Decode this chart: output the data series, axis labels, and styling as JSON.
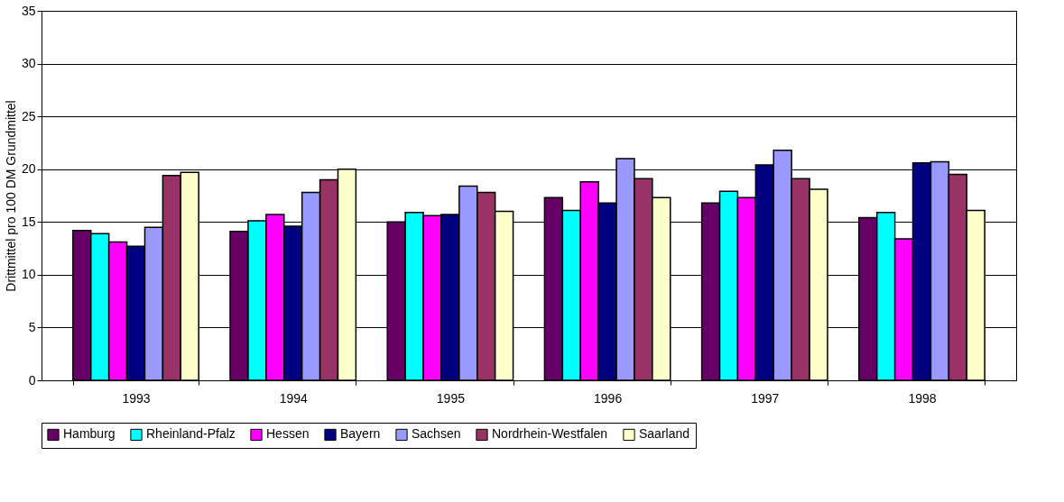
{
  "chart_data": {
    "type": "bar",
    "ylabel": "Drittmittel pro 100 DM Grundmittel",
    "categories": [
      "1993",
      "1994",
      "1995",
      "1996",
      "1997",
      "1998"
    ],
    "series": [
      {
        "name": "Hamburg",
        "color": "#660066",
        "values": [
          14.2,
          14.1,
          15.0,
          17.3,
          16.8,
          15.4
        ]
      },
      {
        "name": "Rheinland-Pfalz",
        "color": "#00ffff",
        "values": [
          13.9,
          15.1,
          15.9,
          16.1,
          17.9,
          15.9
        ]
      },
      {
        "name": "Hessen",
        "color": "#ff00ff",
        "values": [
          13.1,
          15.7,
          15.6,
          18.8,
          17.3,
          13.4
        ]
      },
      {
        "name": "Bayern",
        "color": "#000080",
        "values": [
          12.7,
          14.6,
          15.7,
          16.8,
          20.4,
          20.6
        ]
      },
      {
        "name": "Sachsen",
        "color": "#9999ff",
        "values": [
          14.5,
          17.8,
          18.4,
          21.0,
          21.8,
          20.7
        ]
      },
      {
        "name": "Nordrhein-Westfalen",
        "color": "#993366",
        "values": [
          19.4,
          19.0,
          17.8,
          19.1,
          19.1,
          19.5
        ]
      },
      {
        "name": "Saarland",
        "color": "#ffffcc",
        "values": [
          19.7,
          20.0,
          16.0,
          17.3,
          18.1,
          16.1
        ]
      }
    ],
    "ylim": [
      0,
      35
    ],
    "yticks": [
      0,
      5,
      10,
      15,
      20,
      25,
      30,
      35
    ],
    "grid": "y",
    "legend": "bottom"
  }
}
